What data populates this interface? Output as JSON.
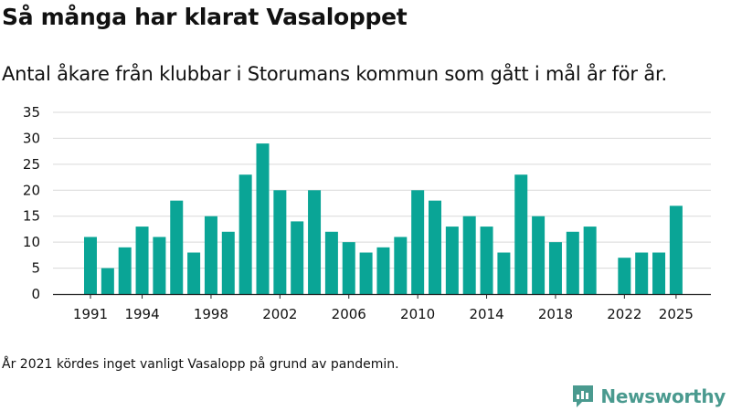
{
  "header": {
    "title": "Så många har klarat Vasaloppet",
    "subtitle": "Antal åkare från klubbar i Storumans kommun som gått i mål år för år."
  },
  "footer": {
    "note": "År 2021 kördes inget vanligt Vasalopp på grund av pandemin.",
    "brand": "Newsworthy"
  },
  "colors": {
    "bar": "#0aa596",
    "grid": "#d9d9d9",
    "axis": "#222222",
    "brand": "#4a9a8f"
  },
  "chart_data": {
    "type": "bar",
    "title": "Så många har klarat Vasaloppet",
    "subtitle": "Antal åkare från klubbar i Storumans kommun som gått i mål år för år.",
    "xlabel": "",
    "ylabel": "",
    "ylim": [
      0,
      35
    ],
    "yticks": [
      0,
      5,
      10,
      15,
      20,
      25,
      30,
      35
    ],
    "xticks": [
      1991,
      1994,
      1998,
      2002,
      2006,
      2010,
      2014,
      2018,
      2022,
      2025
    ],
    "grid": true,
    "x": [
      1991,
      1992,
      1993,
      1994,
      1995,
      1996,
      1997,
      1998,
      1999,
      2000,
      2001,
      2002,
      2003,
      2004,
      2005,
      2006,
      2007,
      2008,
      2009,
      2010,
      2011,
      2012,
      2013,
      2014,
      2015,
      2016,
      2017,
      2018,
      2019,
      2020,
      2021,
      2022,
      2023,
      2024,
      2025
    ],
    "values": [
      11,
      5,
      9,
      13,
      11,
      18,
      8,
      15,
      12,
      23,
      29,
      20,
      14,
      20,
      12,
      10,
      8,
      9,
      11,
      20,
      18,
      13,
      15,
      13,
      8,
      23,
      15,
      10,
      12,
      13,
      null,
      7,
      8,
      8,
      17
    ]
  }
}
